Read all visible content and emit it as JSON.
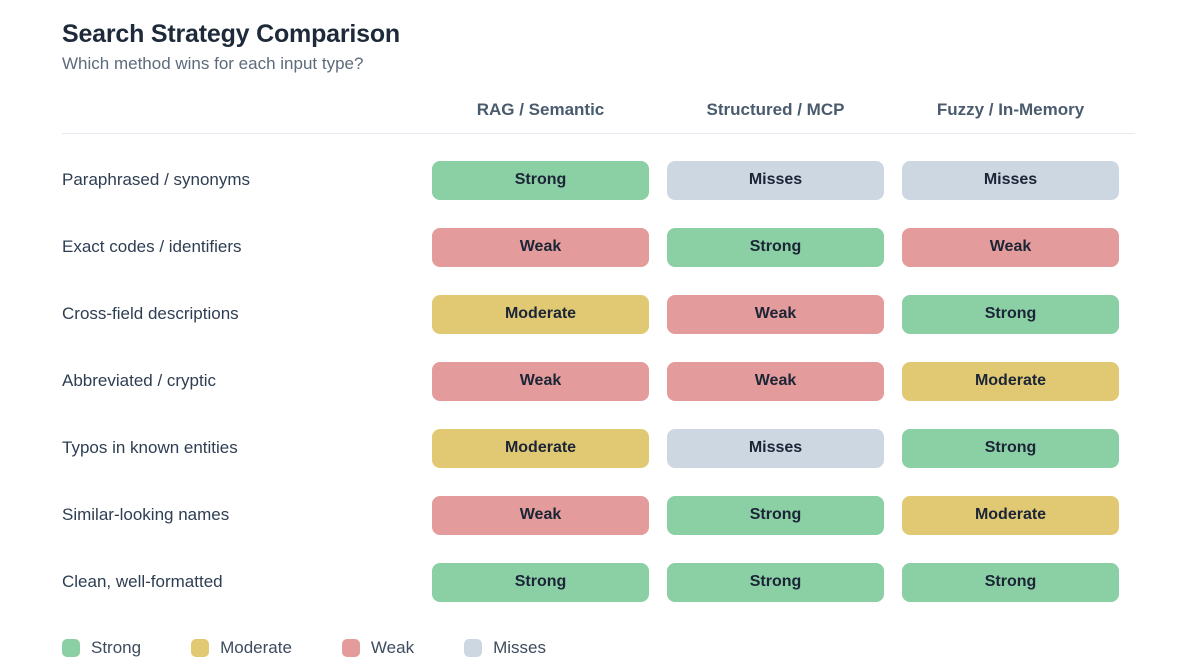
{
  "chart_data": {
    "type": "table",
    "title": "Search Strategy Comparison",
    "subtitle": "Which method wins for each input type?",
    "columns": [
      "RAG / Semantic",
      "Structured / MCP",
      "Fuzzy / In-Memory"
    ],
    "rows": [
      {
        "label": "Paraphrased / synonyms",
        "cells": [
          "Strong",
          "Misses",
          "Misses"
        ]
      },
      {
        "label": "Exact codes / identifiers",
        "cells": [
          "Weak",
          "Strong",
          "Weak"
        ]
      },
      {
        "label": "Cross-field descriptions",
        "cells": [
          "Moderate",
          "Weak",
          "Strong"
        ]
      },
      {
        "label": "Abbreviated / cryptic",
        "cells": [
          "Weak",
          "Weak",
          "Moderate"
        ]
      },
      {
        "label": "Typos in known entities",
        "cells": [
          "Moderate",
          "Misses",
          "Strong"
        ]
      },
      {
        "label": "Similar-looking names",
        "cells": [
          "Weak",
          "Strong",
          "Moderate"
        ]
      },
      {
        "label": "Clean, well-formatted",
        "cells": [
          "Strong",
          "Strong",
          "Strong"
        ]
      }
    ],
    "legend": [
      "Strong",
      "Moderate",
      "Weak",
      "Misses"
    ],
    "legend_position": "bottom"
  },
  "rating_colors": {
    "Strong": "#8bcfa5",
    "Moderate": "#e1c974",
    "Weak": "#e39c9b",
    "Misses": "#cdd7e1"
  }
}
